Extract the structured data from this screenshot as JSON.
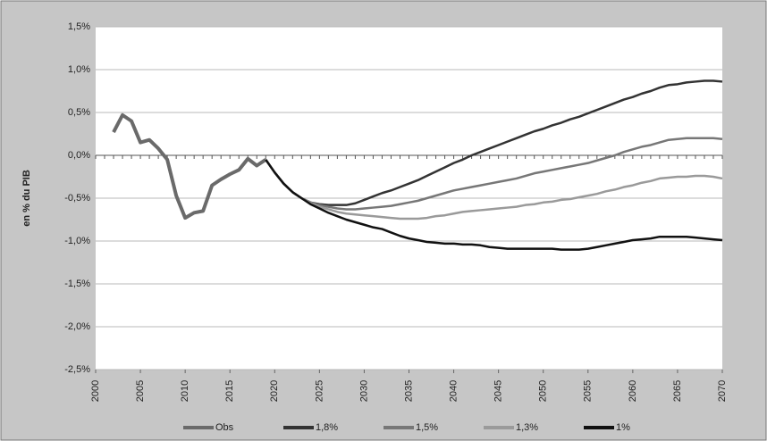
{
  "chart_data": {
    "type": "line",
    "y_label": "en % du PIB",
    "x": [
      2002,
      2003,
      2004,
      2005,
      2006,
      2007,
      2008,
      2009,
      2010,
      2011,
      2012,
      2013,
      2014,
      2015,
      2016,
      2017,
      2018,
      2019,
      2020,
      2021,
      2022,
      2023,
      2024,
      2025,
      2026,
      2027,
      2028,
      2029,
      2030,
      2031,
      2032,
      2033,
      2034,
      2035,
      2036,
      2037,
      2038,
      2039,
      2040,
      2041,
      2042,
      2043,
      2044,
      2045,
      2046,
      2047,
      2048,
      2049,
      2050,
      2051,
      2052,
      2053,
      2054,
      2055,
      2056,
      2057,
      2058,
      2059,
      2060,
      2061,
      2062,
      2063,
      2064,
      2065,
      2066,
      2067,
      2068,
      2069,
      2070
    ],
    "xlim": [
      2000,
      2070
    ],
    "xticks": [
      2000,
      2005,
      2010,
      2015,
      2020,
      2025,
      2030,
      2035,
      2040,
      2045,
      2050,
      2055,
      2060,
      2065,
      2070
    ],
    "ylim": [
      -2.5,
      1.5
    ],
    "yticks": [
      {
        "value": -2.5,
        "label": "-2,5%"
      },
      {
        "value": -2,
        "label": "-2,0%"
      },
      {
        "value": -1.5,
        "label": "-1,5%"
      },
      {
        "value": -1,
        "label": "-1,0%"
      },
      {
        "value": -0.5,
        "label": "-0,5%"
      },
      {
        "value": 0,
        "label": "0,0%"
      },
      {
        "value": 0.5,
        "label": "0,5%"
      },
      {
        "value": 1,
        "label": "1,0%"
      },
      {
        "value": 1.5,
        "label": "1,5%"
      }
    ],
    "grid": true,
    "legend": "bottom",
    "series": [
      {
        "name": "Obs",
        "color": "#6a6a6a",
        "values": [
          0.27,
          0.47,
          0.4,
          0.15,
          0.18,
          0.08,
          -0.05,
          -0.47,
          -0.73,
          -0.67,
          -0.65,
          -0.35,
          -0.28,
          -0.22,
          -0.17,
          -0.04,
          -0.12,
          -0.05,
          null,
          null,
          null,
          null,
          null,
          null,
          null,
          null,
          null,
          null,
          null,
          null,
          null,
          null,
          null,
          null,
          null,
          null,
          null,
          null,
          null,
          null,
          null,
          null,
          null,
          null,
          null,
          null,
          null,
          null,
          null,
          null,
          null,
          null,
          null,
          null,
          null,
          null,
          null,
          null,
          null,
          null,
          null,
          null,
          null,
          null,
          null,
          null,
          null,
          null,
          null
        ]
      },
      {
        "name": "1,8%",
        "color": "#333333",
        "values": [
          null,
          null,
          null,
          null,
          null,
          null,
          null,
          null,
          null,
          null,
          null,
          null,
          null,
          null,
          null,
          null,
          null,
          -0.05,
          -0.2,
          -0.33,
          -0.43,
          -0.5,
          -0.55,
          -0.57,
          -0.58,
          -0.58,
          -0.58,
          -0.56,
          -0.52,
          -0.48,
          -0.44,
          -0.41,
          -0.37,
          -0.33,
          -0.29,
          -0.24,
          -0.19,
          -0.14,
          -0.09,
          -0.05,
          0.0,
          0.04,
          0.08,
          0.12,
          0.16,
          0.2,
          0.24,
          0.28,
          0.31,
          0.35,
          0.38,
          0.42,
          0.45,
          0.49,
          0.53,
          0.57,
          0.61,
          0.65,
          0.68,
          0.72,
          0.75,
          0.79,
          0.82,
          0.83,
          0.85,
          0.86,
          0.87,
          0.87,
          0.86
        ]
      },
      {
        "name": "1,5%",
        "color": "#777777",
        "values": [
          null,
          null,
          null,
          null,
          null,
          null,
          null,
          null,
          null,
          null,
          null,
          null,
          null,
          null,
          null,
          null,
          null,
          -0.05,
          -0.2,
          -0.33,
          -0.43,
          -0.5,
          -0.55,
          -0.58,
          -0.6,
          -0.62,
          -0.63,
          -0.63,
          -0.62,
          -0.61,
          -0.6,
          -0.59,
          -0.57,
          -0.55,
          -0.53,
          -0.5,
          -0.47,
          -0.44,
          -0.41,
          -0.39,
          -0.37,
          -0.35,
          -0.33,
          -0.31,
          -0.29,
          -0.27,
          -0.24,
          -0.21,
          -0.19,
          -0.17,
          -0.15,
          -0.13,
          -0.11,
          -0.09,
          -0.06,
          -0.03,
          0.0,
          0.04,
          0.07,
          0.1,
          0.12,
          0.15,
          0.18,
          0.19,
          0.2,
          0.2,
          0.2,
          0.2,
          0.19
        ]
      },
      {
        "name": "1,3%",
        "color": "#9a9a9a",
        "values": [
          null,
          null,
          null,
          null,
          null,
          null,
          null,
          null,
          null,
          null,
          null,
          null,
          null,
          null,
          null,
          null,
          null,
          -0.05,
          -0.2,
          -0.33,
          -0.43,
          -0.5,
          -0.56,
          -0.6,
          -0.63,
          -0.66,
          -0.68,
          -0.69,
          -0.7,
          -0.71,
          -0.72,
          -0.73,
          -0.74,
          -0.74,
          -0.74,
          -0.73,
          -0.71,
          -0.7,
          -0.68,
          -0.66,
          -0.65,
          -0.64,
          -0.63,
          -0.62,
          -0.61,
          -0.6,
          -0.58,
          -0.57,
          -0.55,
          -0.54,
          -0.52,
          -0.51,
          -0.49,
          -0.47,
          -0.45,
          -0.42,
          -0.4,
          -0.37,
          -0.35,
          -0.32,
          -0.3,
          -0.27,
          -0.26,
          -0.25,
          -0.25,
          -0.24,
          -0.24,
          -0.25,
          -0.27
        ]
      },
      {
        "name": "1%",
        "color": "#111111",
        "values": [
          null,
          null,
          null,
          null,
          null,
          null,
          null,
          null,
          null,
          null,
          null,
          null,
          null,
          null,
          null,
          null,
          null,
          -0.05,
          -0.2,
          -0.33,
          -0.43,
          -0.5,
          -0.57,
          -0.62,
          -0.67,
          -0.71,
          -0.75,
          -0.78,
          -0.81,
          -0.84,
          -0.86,
          -0.9,
          -0.94,
          -0.97,
          -0.99,
          -1.01,
          -1.02,
          -1.03,
          -1.03,
          -1.04,
          -1.04,
          -1.05,
          -1.07,
          -1.08,
          -1.09,
          -1.09,
          -1.09,
          -1.09,
          -1.09,
          -1.09,
          -1.1,
          -1.1,
          -1.1,
          -1.09,
          -1.07,
          -1.05,
          -1.03,
          -1.01,
          -0.99,
          -0.98,
          -0.97,
          -0.95,
          -0.95,
          -0.95,
          -0.95,
          -0.96,
          -0.97,
          -0.98,
          -0.99
        ]
      }
    ]
  }
}
